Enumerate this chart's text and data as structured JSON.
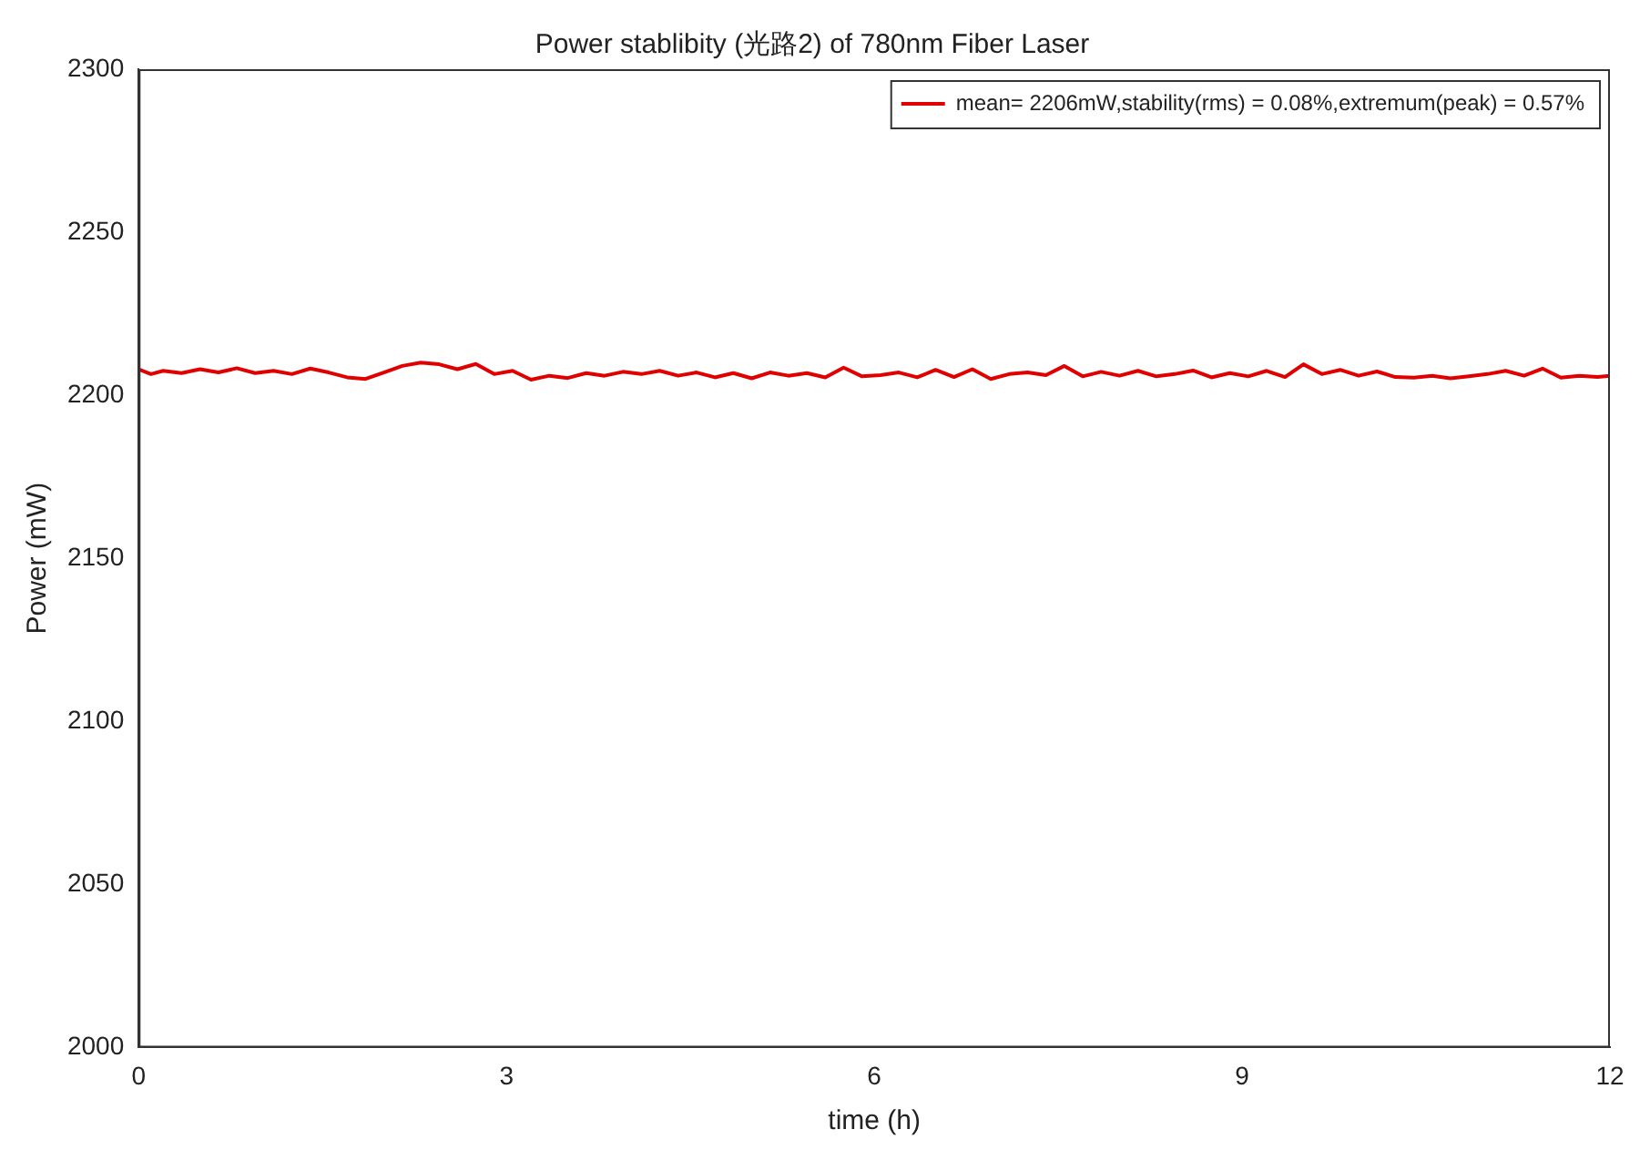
{
  "chart_data": {
    "type": "line",
    "title": "Power stablibity (光路2) of 780nm Fiber Laser",
    "xlabel": "time (h)",
    "ylabel": "Power (mW)",
    "xlim": [
      0,
      12
    ],
    "xticks": [
      0,
      3,
      6,
      9,
      12
    ],
    "ylim": [
      2000,
      2300
    ],
    "yticks": [
      2000,
      2050,
      2100,
      2150,
      2200,
      2250,
      2300
    ],
    "grid": false,
    "legend": "top right",
    "marker": "none",
    "line_style": "solid",
    "series": [
      {
        "name": "mean= 2206mW,stability(rms) = 0.08%,extremum(peak) = 0.57%",
        "color": "#e00000",
        "x": [
          0,
          0.1,
          0.2,
          0.35,
          0.5,
          0.65,
          0.8,
          0.95,
          1.1,
          1.25,
          1.4,
          1.55,
          1.7,
          1.85,
          2.0,
          2.15,
          2.3,
          2.45,
          2.6,
          2.75,
          2.9,
          3.05,
          3.2,
          3.35,
          3.5,
          3.65,
          3.8,
          3.95,
          4.1,
          4.25,
          4.4,
          4.55,
          4.7,
          4.85,
          5.0,
          5.15,
          5.3,
          5.45,
          5.6,
          5.75,
          5.9,
          6.05,
          6.2,
          6.35,
          6.5,
          6.65,
          6.8,
          6.95,
          7.1,
          7.25,
          7.4,
          7.55,
          7.7,
          7.85,
          8.0,
          8.15,
          8.3,
          8.45,
          8.6,
          8.75,
          8.9,
          9.05,
          9.2,
          9.35,
          9.5,
          9.65,
          9.8,
          9.95,
          10.1,
          10.25,
          10.4,
          10.55,
          10.7,
          10.85,
          11.0,
          11.15,
          11.3,
          11.45,
          11.6,
          11.75,
          11.9,
          12
        ],
        "values": [
          2208,
          2206.5,
          2207.5,
          2206.8,
          2208,
          2207,
          2208.3,
          2206.8,
          2207.5,
          2206.5,
          2208.2,
          2207,
          2205.5,
          2205,
          2207,
          2209,
          2210,
          2209.5,
          2208,
          2209.6,
          2206.5,
          2207.5,
          2204.8,
          2206,
          2205.3,
          2206.8,
          2206,
          2207.2,
          2206.5,
          2207.5,
          2206,
          2207,
          2205.5,
          2206.8,
          2205.2,
          2207,
          2206,
          2206.8,
          2205.5,
          2208.5,
          2205.8,
          2206.2,
          2207,
          2205.5,
          2207.8,
          2205.6,
          2208,
          2205,
          2206.5,
          2207,
          2206.2,
          2209,
          2205.8,
          2207.2,
          2206,
          2207.5,
          2205.8,
          2206.5,
          2207.6,
          2205.5,
          2206.8,
          2205.8,
          2207.5,
          2205.6,
          2209.5,
          2206.5,
          2207.8,
          2206,
          2207.3,
          2205.6,
          2205.4,
          2206,
          2205.2,
          2205.8,
          2206.5,
          2207.5,
          2206,
          2208.2,
          2205.4,
          2206,
          2205.6,
          2206
        ]
      }
    ]
  }
}
